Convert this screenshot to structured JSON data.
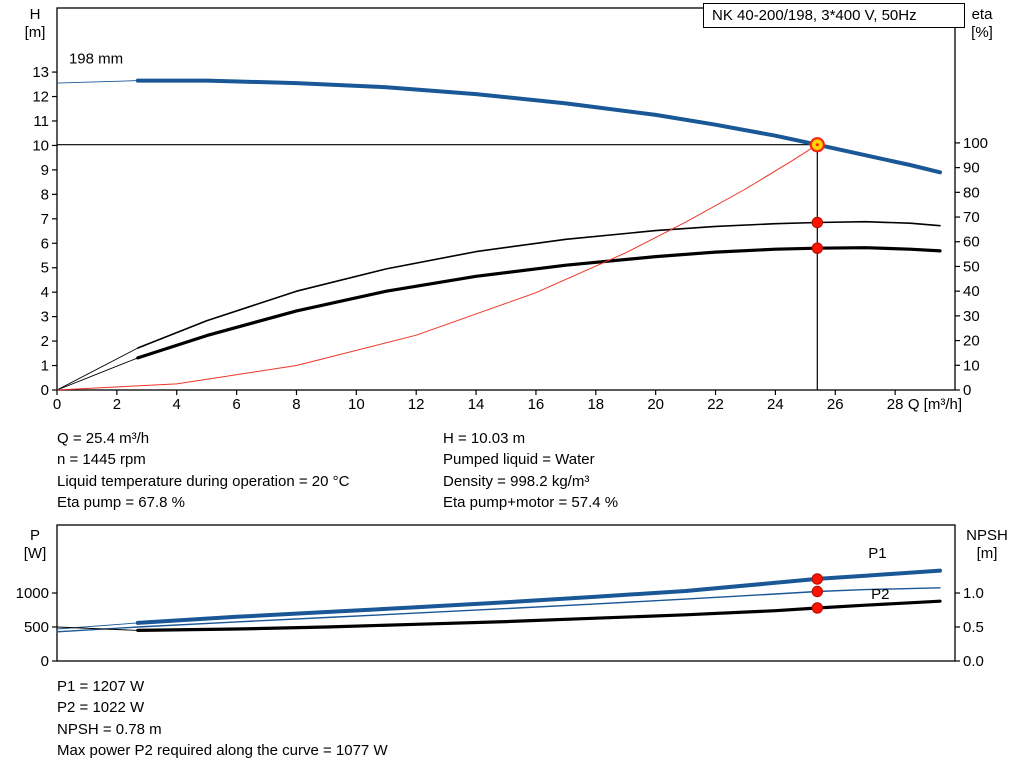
{
  "title_box": {
    "text": "NK 40-200/198, 3*400 V, 50Hz"
  },
  "operating_data": {
    "left": [
      "Q = 25.4 m³/h",
      "n = 1445 rpm",
      "Liquid temperature during operation = 20 °C",
      "Eta pump = 67.8 %"
    ],
    "right": [
      "H = 10.03 m",
      "Pumped liquid = Water",
      "Density = 998.2 kg/m³",
      "Eta pump+motor = 57.4 %"
    ]
  },
  "power_data": [
    "P1 = 1207 W",
    "P2 = 1022 W",
    "NPSH = 0.78 m",
    "Max power P2 required along the curve = 1077 W"
  ],
  "colors": {
    "curve_blue": "#1a5796",
    "curve_red": "#ee3423",
    "marker_dot": "#fb1400",
    "marker_dot_edge": "#b00b00",
    "duty_fill": "#ffd200",
    "duty_ring": "#f42616",
    "axis": "#000000"
  },
  "chart_data": [
    {
      "type": "line",
      "title": "NK 40-200/198, 3*400 V, 50Hz",
      "x_axis": {
        "label": "Q [m³/h]",
        "min": 0,
        "max": 30,
        "ticks": [
          {
            "v": 0,
            "t": "0"
          },
          {
            "v": 2,
            "t": "2"
          },
          {
            "v": 4,
            "t": "4"
          },
          {
            "v": 6,
            "t": "6"
          },
          {
            "v": 8,
            "t": "8"
          },
          {
            "v": 10,
            "t": "10"
          },
          {
            "v": 12,
            "t": "12"
          },
          {
            "v": 14,
            "t": "14"
          },
          {
            "v": 16,
            "t": "16"
          },
          {
            "v": 18,
            "t": "18"
          },
          {
            "v": 20,
            "t": "20"
          },
          {
            "v": 22,
            "t": "22"
          },
          {
            "v": 24,
            "t": "24"
          },
          {
            "v": 26,
            "t": "26"
          },
          {
            "v": 28,
            "t": "28"
          }
        ]
      },
      "y_left": {
        "label_lines": [
          "H",
          "[m]"
        ],
        "min": 0,
        "max": 15.62,
        "ticks": [
          {
            "v": 0,
            "t": "0"
          },
          {
            "v": 1,
            "t": "1"
          },
          {
            "v": 2,
            "t": "2"
          },
          {
            "v": 3,
            "t": "3"
          },
          {
            "v": 4,
            "t": "4"
          },
          {
            "v": 5,
            "t": "5"
          },
          {
            "v": 6,
            "t": "6"
          },
          {
            "v": 7,
            "t": "7"
          },
          {
            "v": 8,
            "t": "8"
          },
          {
            "v": 9,
            "t": "9"
          },
          {
            "v": 10,
            "t": "10"
          },
          {
            "v": 11,
            "t": "11"
          },
          {
            "v": 12,
            "t": "12"
          },
          {
            "v": 13,
            "t": "13"
          }
        ]
      },
      "y_right": {
        "label_lines": [
          "eta",
          "[%]"
        ],
        "min": 0,
        "max": 154.6,
        "ticks": [
          {
            "v": 0,
            "t": "0"
          },
          {
            "v": 10,
            "t": "10"
          },
          {
            "v": 20,
            "t": "20"
          },
          {
            "v": 30,
            "t": "30"
          },
          {
            "v": 40,
            "t": "40"
          },
          {
            "v": 50,
            "t": "50"
          },
          {
            "v": 60,
            "t": "60"
          },
          {
            "v": 70,
            "t": "70"
          },
          {
            "v": 80,
            "t": "80"
          },
          {
            "v": 90,
            "t": "90"
          },
          {
            "v": 100,
            "t": "100"
          }
        ]
      },
      "series": [
        {
          "name": "head-curve-198mm",
          "axis": "left",
          "color": "#1a5796",
          "width": 4,
          "label": {
            "text": "198 mm",
            "q": 0.4,
            "v": 13.35,
            "color": "#000000",
            "anchor": "start"
          },
          "lead": [
            [
              0,
              12.55
            ],
            [
              2.7,
              12.65
            ]
          ],
          "points": [
            [
              2.7,
              12.65
            ],
            [
              5,
              12.65
            ],
            [
              8,
              12.55
            ],
            [
              11,
              12.38
            ],
            [
              14,
              12.1
            ],
            [
              17,
              11.72
            ],
            [
              20,
              11.25
            ],
            [
              22,
              10.85
            ],
            [
              24,
              10.4
            ],
            [
              25.4,
              10.03
            ],
            [
              27,
              9.6
            ],
            [
              28.5,
              9.2
            ],
            [
              29.5,
              8.9
            ]
          ]
        },
        {
          "name": "eta-pump-curve",
          "axis": "right",
          "color": "#000000",
          "width": 1.6,
          "lead": [
            [
              0,
              0
            ],
            [
              2.7,
              17
            ]
          ],
          "points": [
            [
              2.7,
              17
            ],
            [
              5,
              28
            ],
            [
              8,
              40
            ],
            [
              11,
              49
            ],
            [
              14,
              56
            ],
            [
              17,
              61
            ],
            [
              20,
              64.5
            ],
            [
              22,
              66.2
            ],
            [
              24,
              67.3
            ],
            [
              25.4,
              67.8
            ],
            [
              27,
              68.1
            ],
            [
              28.5,
              67.5
            ],
            [
              29.5,
              66.5
            ]
          ]
        },
        {
          "name": "eta-pump-motor-curve",
          "axis": "right",
          "color": "#000000",
          "width": 3.2,
          "lead": [
            [
              0,
              0
            ],
            [
              2.7,
              13
            ]
          ],
          "points": [
            [
              2.7,
              13
            ],
            [
              5,
              22
            ],
            [
              8,
              32
            ],
            [
              11,
              40
            ],
            [
              14,
              46
            ],
            [
              17,
              50.5
            ],
            [
              20,
              54
            ],
            [
              22,
              55.8
            ],
            [
              24,
              57
            ],
            [
              25.4,
              57.4
            ],
            [
              27,
              57.6
            ],
            [
              28.5,
              57
            ],
            [
              29.5,
              56.3
            ]
          ]
        },
        {
          "name": "system-curve",
          "axis": "left",
          "color": "#ee3423",
          "width": 1,
          "points": [
            [
              0,
              0
            ],
            [
              4,
              0.25
            ],
            [
              8,
              1.0
            ],
            [
              12,
              2.24
            ],
            [
              16,
              3.98
            ],
            [
              19,
              5.61
            ],
            [
              21,
              6.86
            ],
            [
              23,
              8.22
            ],
            [
              24.5,
              9.33
            ],
            [
              25.4,
              10.03
            ]
          ]
        }
      ],
      "guide_lines": [
        {
          "name": "duty-horizontal-line",
          "axis": "left",
          "points": [
            [
              0,
              10.03
            ],
            [
              25.4,
              10.03
            ]
          ]
        },
        {
          "name": "duty-vertical-line",
          "axis": "left",
          "points": [
            [
              25.4,
              0
            ],
            [
              25.4,
              10.03
            ]
          ]
        }
      ],
      "markers": [
        {
          "name": "duty-point-marker",
          "style": "duty",
          "axis": "left",
          "q": 25.4,
          "v": 10.03
        },
        {
          "name": "eta-pump-point",
          "style": "dot",
          "axis": "right",
          "q": 25.4,
          "v": 67.8
        },
        {
          "name": "eta-pump-motor-point",
          "style": "dot",
          "axis": "right",
          "q": 25.4,
          "v": 57.4
        }
      ]
    },
    {
      "type": "line",
      "x_axis": {
        "label": "",
        "min": 0,
        "max": 30,
        "ticks": []
      },
      "y_left": {
        "label_lines": [
          "P",
          "[W]"
        ],
        "min": 0,
        "max": 2000,
        "ticks": [
          {
            "v": 0,
            "t": "0"
          },
          {
            "v": 500,
            "t": "500"
          },
          {
            "v": 1000,
            "t": "1000"
          }
        ]
      },
      "y_right": {
        "label_lines": [
          "NPSH",
          "[m]"
        ],
        "min": 0,
        "max": 2.0,
        "ticks": [
          {
            "v": 0,
            "t": "0.0"
          },
          {
            "v": 0.5,
            "t": "0.5"
          },
          {
            "v": 1.0,
            "t": "1.0"
          }
        ]
      },
      "series": [
        {
          "name": "p1-curve",
          "axis": "left",
          "color": "#1a5796",
          "width": 4,
          "label": {
            "text": "P1",
            "q": 27.1,
            "v": 1515,
            "color": "#1a5796",
            "anchor": "start"
          },
          "lead": [
            [
              0,
              470
            ],
            [
              2.7,
              560
            ]
          ],
          "points": [
            [
              2.7,
              560
            ],
            [
              6,
              650
            ],
            [
              9,
              720
            ],
            [
              12,
              790
            ],
            [
              15,
              865
            ],
            [
              18,
              945
            ],
            [
              21,
              1030
            ],
            [
              24,
              1150
            ],
            [
              25.4,
              1207
            ],
            [
              27,
              1255
            ],
            [
              29.5,
              1330
            ]
          ]
        },
        {
          "name": "p2-curve",
          "axis": "left",
          "color": "#1a5796",
          "width": 1.4,
          "label": {
            "text": "P2",
            "q": 27.2,
            "v": 910,
            "color": "#1a5796",
            "anchor": "start"
          },
          "points": [
            [
              0,
              430
            ],
            [
              2.7,
              500
            ],
            [
              6,
              575
            ],
            [
              9,
              640
            ],
            [
              12,
              705
            ],
            [
              15,
              770
            ],
            [
              18,
              840
            ],
            [
              21,
              910
            ],
            [
              24,
              985
            ],
            [
              25.4,
              1022
            ],
            [
              27,
              1050
            ],
            [
              29.5,
              1077
            ]
          ]
        },
        {
          "name": "npsh-curve",
          "axis": "right",
          "color": "#000000",
          "width": 3.2,
          "lead": [
            [
              0,
              0.5
            ],
            [
              2.7,
              0.45
            ]
          ],
          "points": [
            [
              2.7,
              0.45
            ],
            [
              6,
              0.47
            ],
            [
              9,
              0.5
            ],
            [
              12,
              0.54
            ],
            [
              15,
              0.58
            ],
            [
              18,
              0.63
            ],
            [
              21,
              0.68
            ],
            [
              24,
              0.74
            ],
            [
              25.4,
              0.78
            ],
            [
              27,
              0.82
            ],
            [
              29.5,
              0.88
            ]
          ]
        }
      ],
      "guide_lines": [],
      "markers": [
        {
          "name": "p1-point",
          "style": "dot",
          "axis": "left",
          "q": 25.4,
          "v": 1207
        },
        {
          "name": "p2-point",
          "style": "dot",
          "axis": "left",
          "q": 25.4,
          "v": 1022
        },
        {
          "name": "npsh-point",
          "style": "dot",
          "axis": "right",
          "q": 25.4,
          "v": 0.78
        }
      ]
    }
  ]
}
